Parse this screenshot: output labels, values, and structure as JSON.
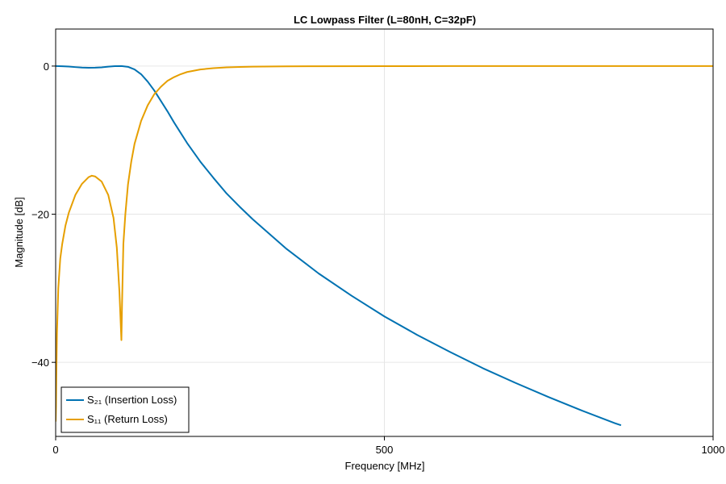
{
  "chart_data": {
    "type": "line",
    "title": "LC Lowpass Filter (L=80nH, C=32pF)",
    "xlabel": "Frequency [MHz]",
    "ylabel": "Magnitude [dB]",
    "xlim": [
      0,
      1000
    ],
    "ylim": [
      -50,
      5
    ],
    "xticks": [
      0,
      500,
      1000
    ],
    "xtick_labels": [
      "0",
      "500",
      "1000"
    ],
    "yticks": [
      0,
      -20,
      -40
    ],
    "ytick_labels": [
      "0",
      "−20",
      "−40"
    ],
    "grid": true,
    "legend_position": "bottom-left",
    "series": [
      {
        "name": "S₂₁ (Insertion Loss)",
        "color": "#0072b2",
        "x": [
          0,
          10,
          20,
          30,
          40,
          50,
          60,
          70,
          80,
          90,
          100,
          110,
          120,
          130,
          140,
          150,
          160,
          170,
          180,
          190,
          200,
          220,
          240,
          260,
          280,
          300,
          350,
          400,
          450,
          500,
          550,
          600,
          650,
          700,
          750,
          800,
          850,
          860
        ],
        "values": [
          0,
          -0.02,
          -0.07,
          -0.14,
          -0.2,
          -0.23,
          -0.22,
          -0.17,
          -0.08,
          -0.01,
          0,
          -0.1,
          -0.45,
          -1.1,
          -2.1,
          -3.3,
          -4.7,
          -6.1,
          -7.6,
          -9.0,
          -10.4,
          -12.9,
          -15.1,
          -17.2,
          -19.0,
          -20.7,
          -24.6,
          -28.0,
          -31.0,
          -33.8,
          -36.3,
          -38.6,
          -40.8,
          -42.8,
          -44.7,
          -46.5,
          -48.2,
          -48.5
        ]
      },
      {
        "name": "S₁₁ (Return Loss)",
        "color": "#e69f00",
        "x": [
          0,
          0.5,
          1,
          2,
          4,
          7,
          10,
          15,
          20,
          30,
          40,
          50,
          55,
          60,
          70,
          80,
          88,
          93,
          97,
          100,
          101,
          103,
          106,
          110,
          115,
          120,
          130,
          140,
          150,
          160,
          170,
          180,
          190,
          200,
          220,
          240,
          260,
          280,
          300,
          350,
          400,
          500,
          600,
          700,
          800,
          900,
          1000
        ],
        "values": [
          -48,
          -46,
          -42,
          -36,
          -30,
          -26,
          -24,
          -21.5,
          -19.8,
          -17.4,
          -15.9,
          -15.0,
          -14.8,
          -14.9,
          -15.6,
          -17.4,
          -20.5,
          -24.5,
          -30.5,
          -37,
          -32,
          -24,
          -20.0,
          -16.0,
          -12.9,
          -10.5,
          -7.4,
          -5.3,
          -3.8,
          -2.8,
          -2.0,
          -1.5,
          -1.1,
          -0.8,
          -0.46,
          -0.28,
          -0.18,
          -0.12,
          -0.08,
          -0.04,
          -0.02,
          -0.01,
          0,
          0,
          0,
          0,
          0
        ]
      }
    ]
  }
}
